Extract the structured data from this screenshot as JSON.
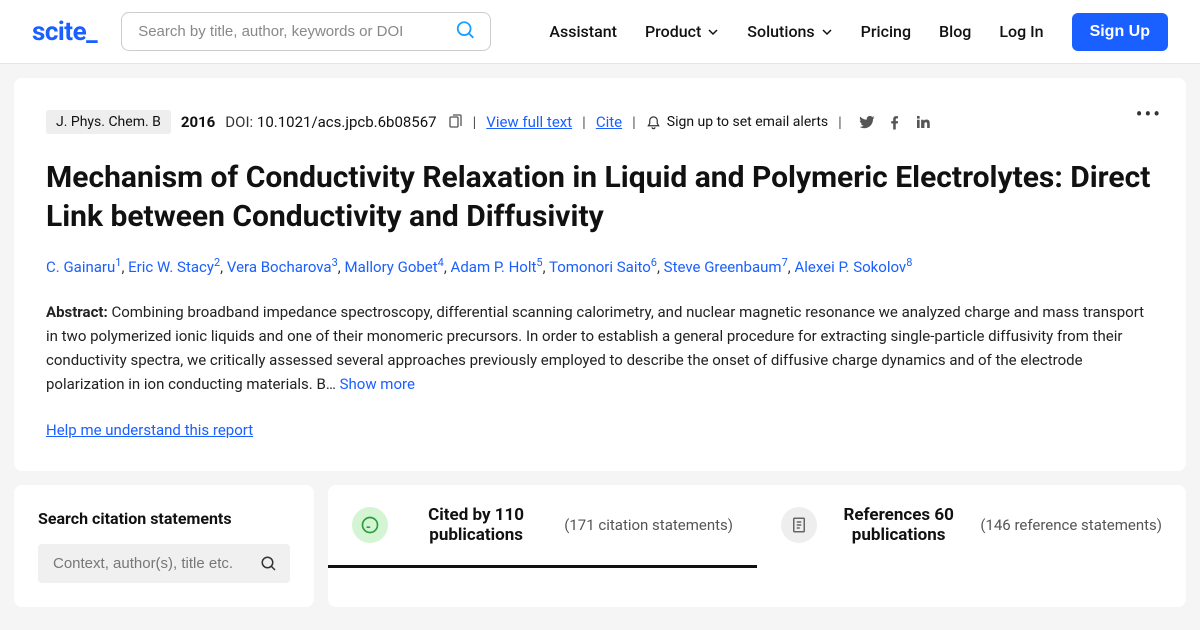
{
  "logo": "scite",
  "search": {
    "placeholder": "Search by title, author, keywords or DOI"
  },
  "nav": {
    "assistant": "Assistant",
    "product": "Product",
    "solutions": "Solutions",
    "pricing": "Pricing",
    "blog": "Blog",
    "login": "Log In",
    "signup": "Sign Up"
  },
  "paper": {
    "journal": "J. Phys. Chem. B",
    "year": "2016",
    "doi_label": "DOI:",
    "doi": "10.1021/acs.jpcb.6b08567",
    "view_full_text": "View full text",
    "cite": "Cite",
    "alert_text": "Sign up to set email alerts",
    "title": "Mechanism of Conductivity Relaxation in Liquid and Polymeric Electrolytes: Direct Link between Conductivity and Diffusivity",
    "authors": [
      {
        "name": "C. Gainaru",
        "sup": "1"
      },
      {
        "name": "Eric W. Stacy",
        "sup": "2"
      },
      {
        "name": "Vera Bocharova",
        "sup": "3"
      },
      {
        "name": "Mallory Gobet",
        "sup": "4"
      },
      {
        "name": "Adam P. Holt",
        "sup": "5"
      },
      {
        "name": "Tomonori Saito",
        "sup": "6"
      },
      {
        "name": "Steve Greenbaum",
        "sup": "7"
      },
      {
        "name": "Alexei P. Sokolov",
        "sup": "8"
      }
    ],
    "abstract_label": "Abstract:",
    "abstract": "Combining broadband impedance spectroscopy, differential scanning calorimetry, and nuclear magnetic resonance we analyzed charge and mass transport in two polymerized ionic liquids and one of their monomeric precursors. In order to establish a general procedure for extracting single-particle diffusivity from their conductivity spectra, we critically assessed several approaches previously employed to describe the onset of diffusive charge dynamics and of the electrode polarization in ion conducting materials. B…",
    "show_more": "Show more",
    "help_link": "Help me understand this report"
  },
  "citations": {
    "search_title": "Search citation statements",
    "search_placeholder": "Context, author(s), title etc.",
    "cited_by": "Cited by 110 publications",
    "cited_by_sub": "(171 citation statements)",
    "references": "References 60 publications",
    "references_sub": "(146 reference statements)"
  }
}
